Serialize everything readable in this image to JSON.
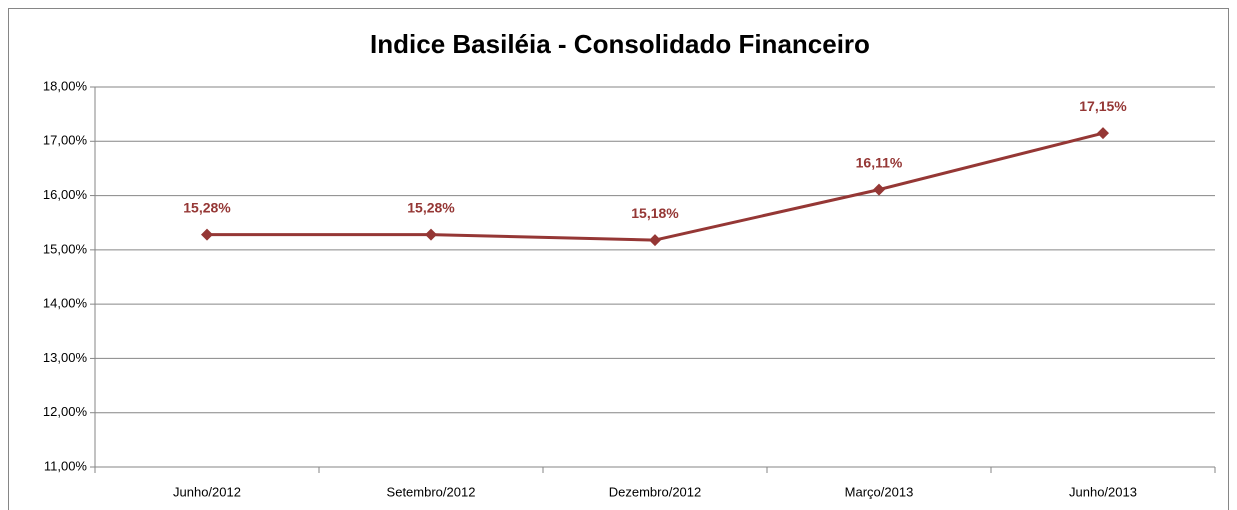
{
  "chart_data": {
    "type": "line",
    "title": "Indice Basiléia - Consolidado Financeiro",
    "categories": [
      "Junho/2012",
      "Setembro/2012",
      "Dezembro/2012",
      "Março/2013",
      "Junho/2013"
    ],
    "series": [
      {
        "color": "#953735",
        "values": [
          15.28,
          15.28,
          15.18,
          16.11,
          17.15
        ],
        "value_labels": [
          "15,28%",
          "15,28%",
          "15,18%",
          "16,11%",
          "17,15%"
        ]
      }
    ],
    "ylim": [
      11,
      18
    ],
    "yticks": [
      {
        "value": 11,
        "label": "11,00%"
      },
      {
        "value": 12,
        "label": "12,00%"
      },
      {
        "value": 13,
        "label": "13,00%"
      },
      {
        "value": 14,
        "label": "14,00%"
      },
      {
        "value": 15,
        "label": "15,00%"
      },
      {
        "value": 16,
        "label": "16,00%"
      },
      {
        "value": 17,
        "label": "17,00%"
      },
      {
        "value": 18,
        "label": "18,00%"
      }
    ],
    "grid": true
  }
}
